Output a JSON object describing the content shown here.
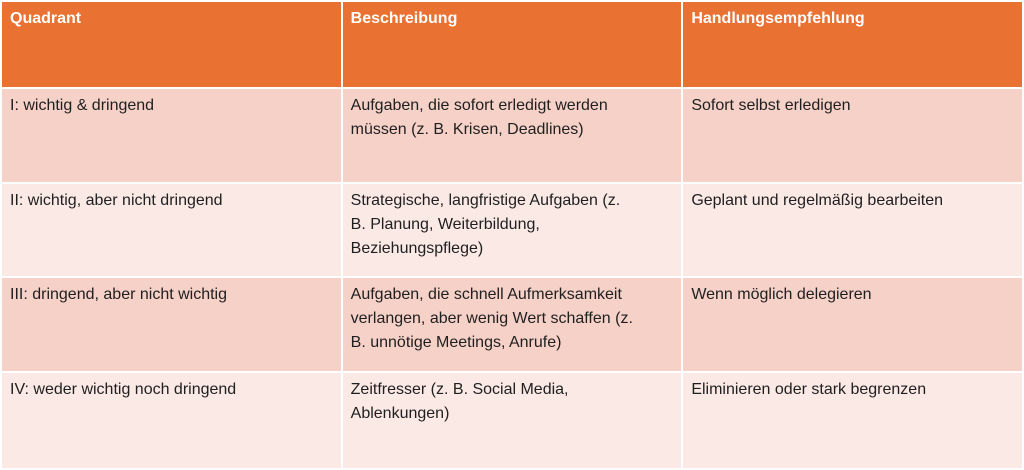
{
  "colors": {
    "header_bg": "#E97132",
    "header_text": "#FFFFFF",
    "band_dark": "#F6D1C8",
    "band_light": "#FAE9E5",
    "body_text": "#1F1F1F",
    "divider": "#FFFFFF"
  },
  "table": {
    "columns": [
      {
        "label": "Quadrant"
      },
      {
        "label": "Beschreibung"
      },
      {
        "label": "Handlungsempfehlung"
      }
    ],
    "rows": [
      {
        "quadrant": "I: wichtig & dringend",
        "beschreibung": "Aufgaben, die sofort erledigt werden\nmüssen (z. B. Krisen, Deadlines)",
        "handlungsempfehlung": "Sofort selbst erledigen"
      },
      {
        "quadrant": "II: wichtig, aber nicht dringend",
        "beschreibung": "Strategische, langfristige Aufgaben (z.\nB. Planung, Weiterbildung,\nBeziehungspflege)",
        "handlungsempfehlung": "Geplant und regelmäßig bearbeiten"
      },
      {
        "quadrant": "III: dringend, aber nicht wichtig",
        "beschreibung": "Aufgaben, die schnell Aufmerksamkeit\nverlangen, aber wenig Wert schaffen (z.\nB. unnötige Meetings, Anrufe)",
        "handlungsempfehlung": "Wenn möglich delegieren"
      },
      {
        "quadrant": "IV: weder wichtig noch dringend",
        "beschreibung": "Zeitfresser (z. B. Social Media,\nAblenkungen)",
        "handlungsempfehlung": "Eliminieren oder stark begrenzen"
      }
    ]
  }
}
